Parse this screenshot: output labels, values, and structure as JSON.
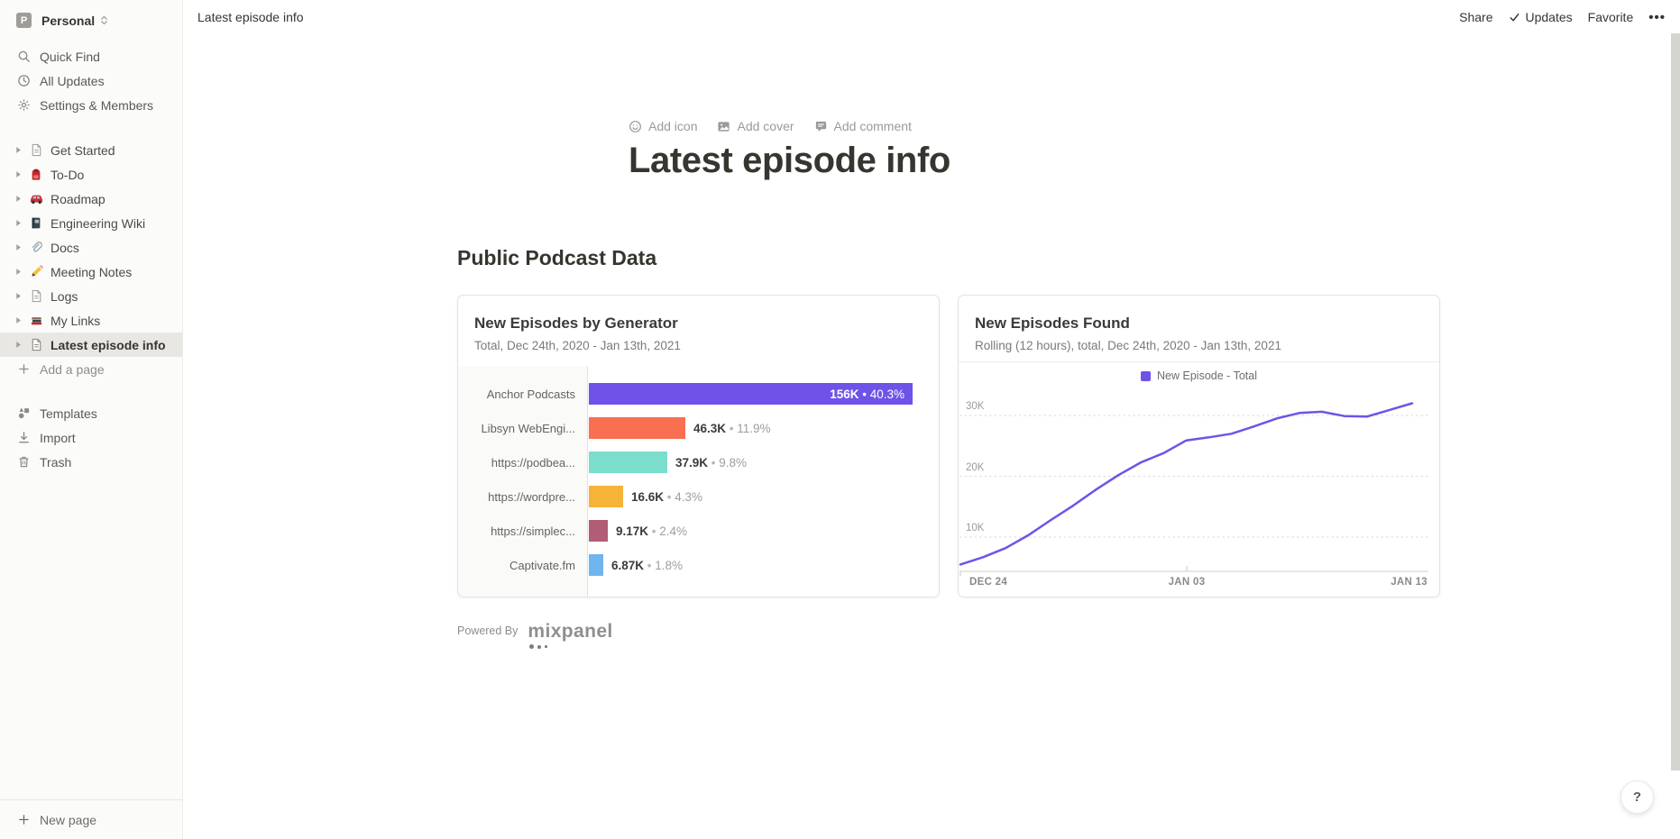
{
  "workspace": {
    "name": "Personal",
    "avatar_letter": "P"
  },
  "sidebar": {
    "top_items": [
      {
        "label": "Quick Find",
        "icon": "search-icon"
      },
      {
        "label": "All Updates",
        "icon": "clock-icon"
      },
      {
        "label": "Settings & Members",
        "icon": "gear-icon"
      }
    ],
    "pages": [
      {
        "label": "Get Started",
        "icon": "page"
      },
      {
        "label": "To-Do",
        "icon": "backpack"
      },
      {
        "label": "Roadmap",
        "icon": "car"
      },
      {
        "label": "Engineering Wiki",
        "icon": "notebook"
      },
      {
        "label": "Docs",
        "icon": "paperclip"
      },
      {
        "label": "Meeting Notes",
        "icon": "pencil"
      },
      {
        "label": "Logs",
        "icon": "page"
      },
      {
        "label": "My Links",
        "icon": "books"
      },
      {
        "label": "Latest episode info",
        "icon": "page",
        "selected": true
      }
    ],
    "add_a_page": "Add a page",
    "bottom_items": [
      {
        "label": "Templates",
        "icon": "templates-icon"
      },
      {
        "label": "Import",
        "icon": "import-icon"
      },
      {
        "label": "Trash",
        "icon": "trash-icon"
      }
    ],
    "new_page": "New page"
  },
  "topbar": {
    "breadcrumb": "Latest episode info",
    "actions": {
      "share": "Share",
      "updates": "Updates",
      "favorite": "Favorite",
      "more": "•••"
    }
  },
  "page": {
    "controls": {
      "add_icon": "Add icon",
      "add_cover": "Add cover",
      "add_comment": "Add comment"
    },
    "title": "Latest episode info",
    "section_heading": "Public Podcast Data",
    "powered_by": "Powered By",
    "mixpanel_logo": "mixpanel"
  },
  "help_button": "?",
  "chart_data": [
    {
      "type": "bar",
      "orientation": "horizontal",
      "title": "New Episodes by Generator",
      "subtitle": "Total, Dec 24th, 2020 - Jan 13th, 2021",
      "categories": [
        "Anchor Podcasts",
        "Libsyn WebEngi...",
        "https://podbea...",
        "https://wordpre...",
        "https://simplec...",
        "Captivate.fm"
      ],
      "values": [
        156000,
        46300,
        37900,
        16600,
        9170,
        6870
      ],
      "value_labels": [
        "156K",
        "46.3K",
        "37.9K",
        "16.6K",
        "9.17K",
        "6.87K"
      ],
      "percent_labels": [
        "40.3%",
        "11.9%",
        "9.8%",
        "4.3%",
        "2.4%",
        "1.8%"
      ],
      "colors": [
        "#6F53E8",
        "#F86F52",
        "#7BDECC",
        "#F5B337",
        "#AF5E75",
        "#6FB5EF"
      ],
      "separator": "•",
      "xlim": [
        0,
        169000
      ]
    },
    {
      "type": "line",
      "title": "New Episodes Found",
      "subtitle": "Rolling (12 hours), total, Dec 24th, 2020 - Jan 13th, 2021",
      "legend": [
        {
          "label": "New Episode - Total",
          "color": "#6F53E8"
        }
      ],
      "x_tick_labels": [
        "DEC 24",
        "JAN 03",
        "JAN 13"
      ],
      "y_ticks": [
        {
          "label": "10K",
          "value": 10000
        },
        {
          "label": "20K",
          "value": 20000
        },
        {
          "label": "30K",
          "value": 30000
        }
      ],
      "values": [
        5500,
        6700,
        8200,
        10300,
        12800,
        15200,
        17800,
        20200,
        22300,
        23800,
        25900,
        26400,
        27000,
        28200,
        29500,
        30400,
        30600,
        29900,
        29800,
        30900,
        32000
      ],
      "line_color": "#6F53E8",
      "grid": "dashed-horizontal",
      "ylim": [
        4400,
        33600
      ]
    }
  ]
}
